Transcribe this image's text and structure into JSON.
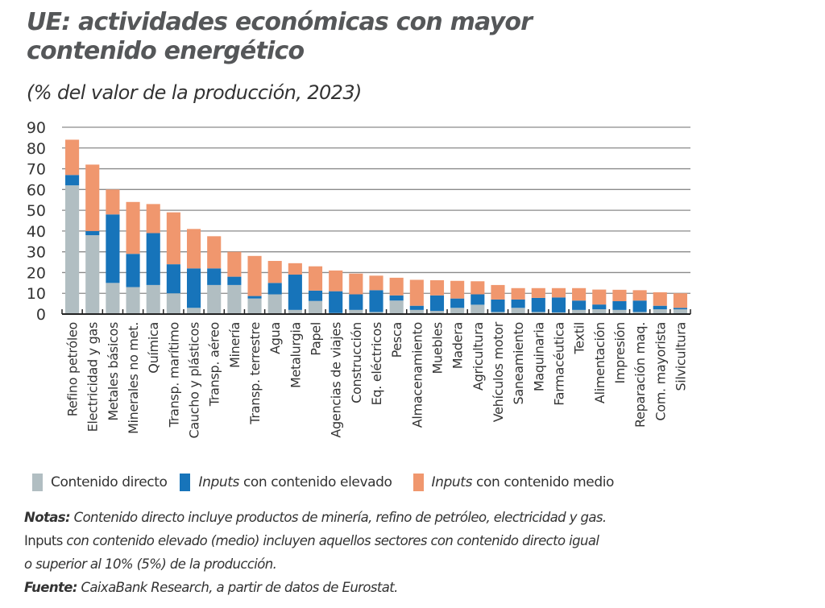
{
  "header": {
    "title_line1": "UE: actividades económicas con mayor",
    "title_line2": "contenido energético",
    "subtitle": "(% del valor de la producción, 2023)"
  },
  "legend": {
    "items": [
      {
        "label_italic": "",
        "label": "Contenido directo",
        "color": "#B1BEC2"
      },
      {
        "label_italic": "Inputs",
        "label": " con contenido elevado",
        "color": "#1774BA"
      },
      {
        "label_italic": "Inputs",
        "label": " con contenido medio",
        "color": "#F0976E"
      }
    ]
  },
  "notes": {
    "notas_label": "Notas:",
    "notas_line1": " Contenido directo incluye productos de minería, refino de petróleo, electricidad y gas.",
    "notas_line2_upright": "Inputs",
    "notas_line2": " con contenido elevado (medio) incluyen aquellos sectores con contenido directo igual",
    "notas_line3": "o superior al 10% (5%) de la producción.",
    "fuente_label": "Fuente:",
    "fuente_text": " CaixaBank Research, a partir de datos de Eurostat."
  },
  "chart_data": {
    "type": "bar",
    "stacked": true,
    "title": "UE: actividades económicas con mayor contenido energético",
    "subtitle": "(% del valor de la producción, 2023)",
    "xlabel": "",
    "ylabel": "",
    "ylim": [
      0,
      90
    ],
    "yticks": [
      0,
      10,
      20,
      30,
      40,
      50,
      60,
      70,
      80,
      90
    ],
    "grid": true,
    "legend_position": "bottom",
    "categories": [
      "Refino petróleo",
      "Electricidad y gas",
      "Metales básicos",
      "Minerales no met.",
      "Química",
      "Transp. marítimo",
      "Caucho y plásticos",
      "Transp. aéreo",
      "Minería",
      "Transp. terrestre",
      "Agua",
      "Metalurgia",
      "Papel",
      "Agencias de viajes",
      "Construcción",
      "Eq. eléctricos",
      "Pesca",
      "Almacenamiento",
      "Muebles",
      "Madera",
      "Agricultura",
      "Vehículos motor",
      "Saneamiento",
      "Maquinaria",
      "Farmacéutica",
      "Textil",
      "Alimentación",
      "Impresión",
      "Reparación maq.",
      "Com. mayorista",
      "Silvicultura"
    ],
    "series": [
      {
        "name": "Contenido directo",
        "color": "#B1BEC2",
        "values": [
          62,
          38,
          15,
          13,
          14,
          10,
          3,
          14,
          14,
          7.5,
          9.5,
          2,
          6.3,
          0.5,
          2,
          1,
          6.5,
          2,
          1.5,
          3,
          4.5,
          1,
          3,
          1,
          0.8,
          2,
          2.3,
          2,
          1,
          2.3,
          2.3
        ]
      },
      {
        "name": "Inputs con contenido elevado",
        "color": "#1774BA",
        "values": [
          5,
          2,
          33,
          16,
          25,
          14,
          19,
          8,
          4,
          1.2,
          5.5,
          17,
          5,
          10.5,
          7.5,
          10.5,
          2.5,
          2,
          7.5,
          4.5,
          5,
          6,
          4,
          6.8,
          7.2,
          4.5,
          2.3,
          4.2,
          5.5,
          1.7,
          0.7
        ]
      },
      {
        "name": "Inputs con contenido medio",
        "color": "#F0976E",
        "values": [
          17,
          32,
          12,
          25,
          14,
          25,
          19,
          15.5,
          12,
          19.3,
          10.6,
          5.5,
          11.7,
          10,
          10,
          7,
          8.5,
          12.5,
          7.3,
          8.5,
          6.3,
          7,
          5.5,
          4.7,
          4.5,
          6,
          7.2,
          5.5,
          5,
          6.5,
          7
        ]
      }
    ]
  }
}
